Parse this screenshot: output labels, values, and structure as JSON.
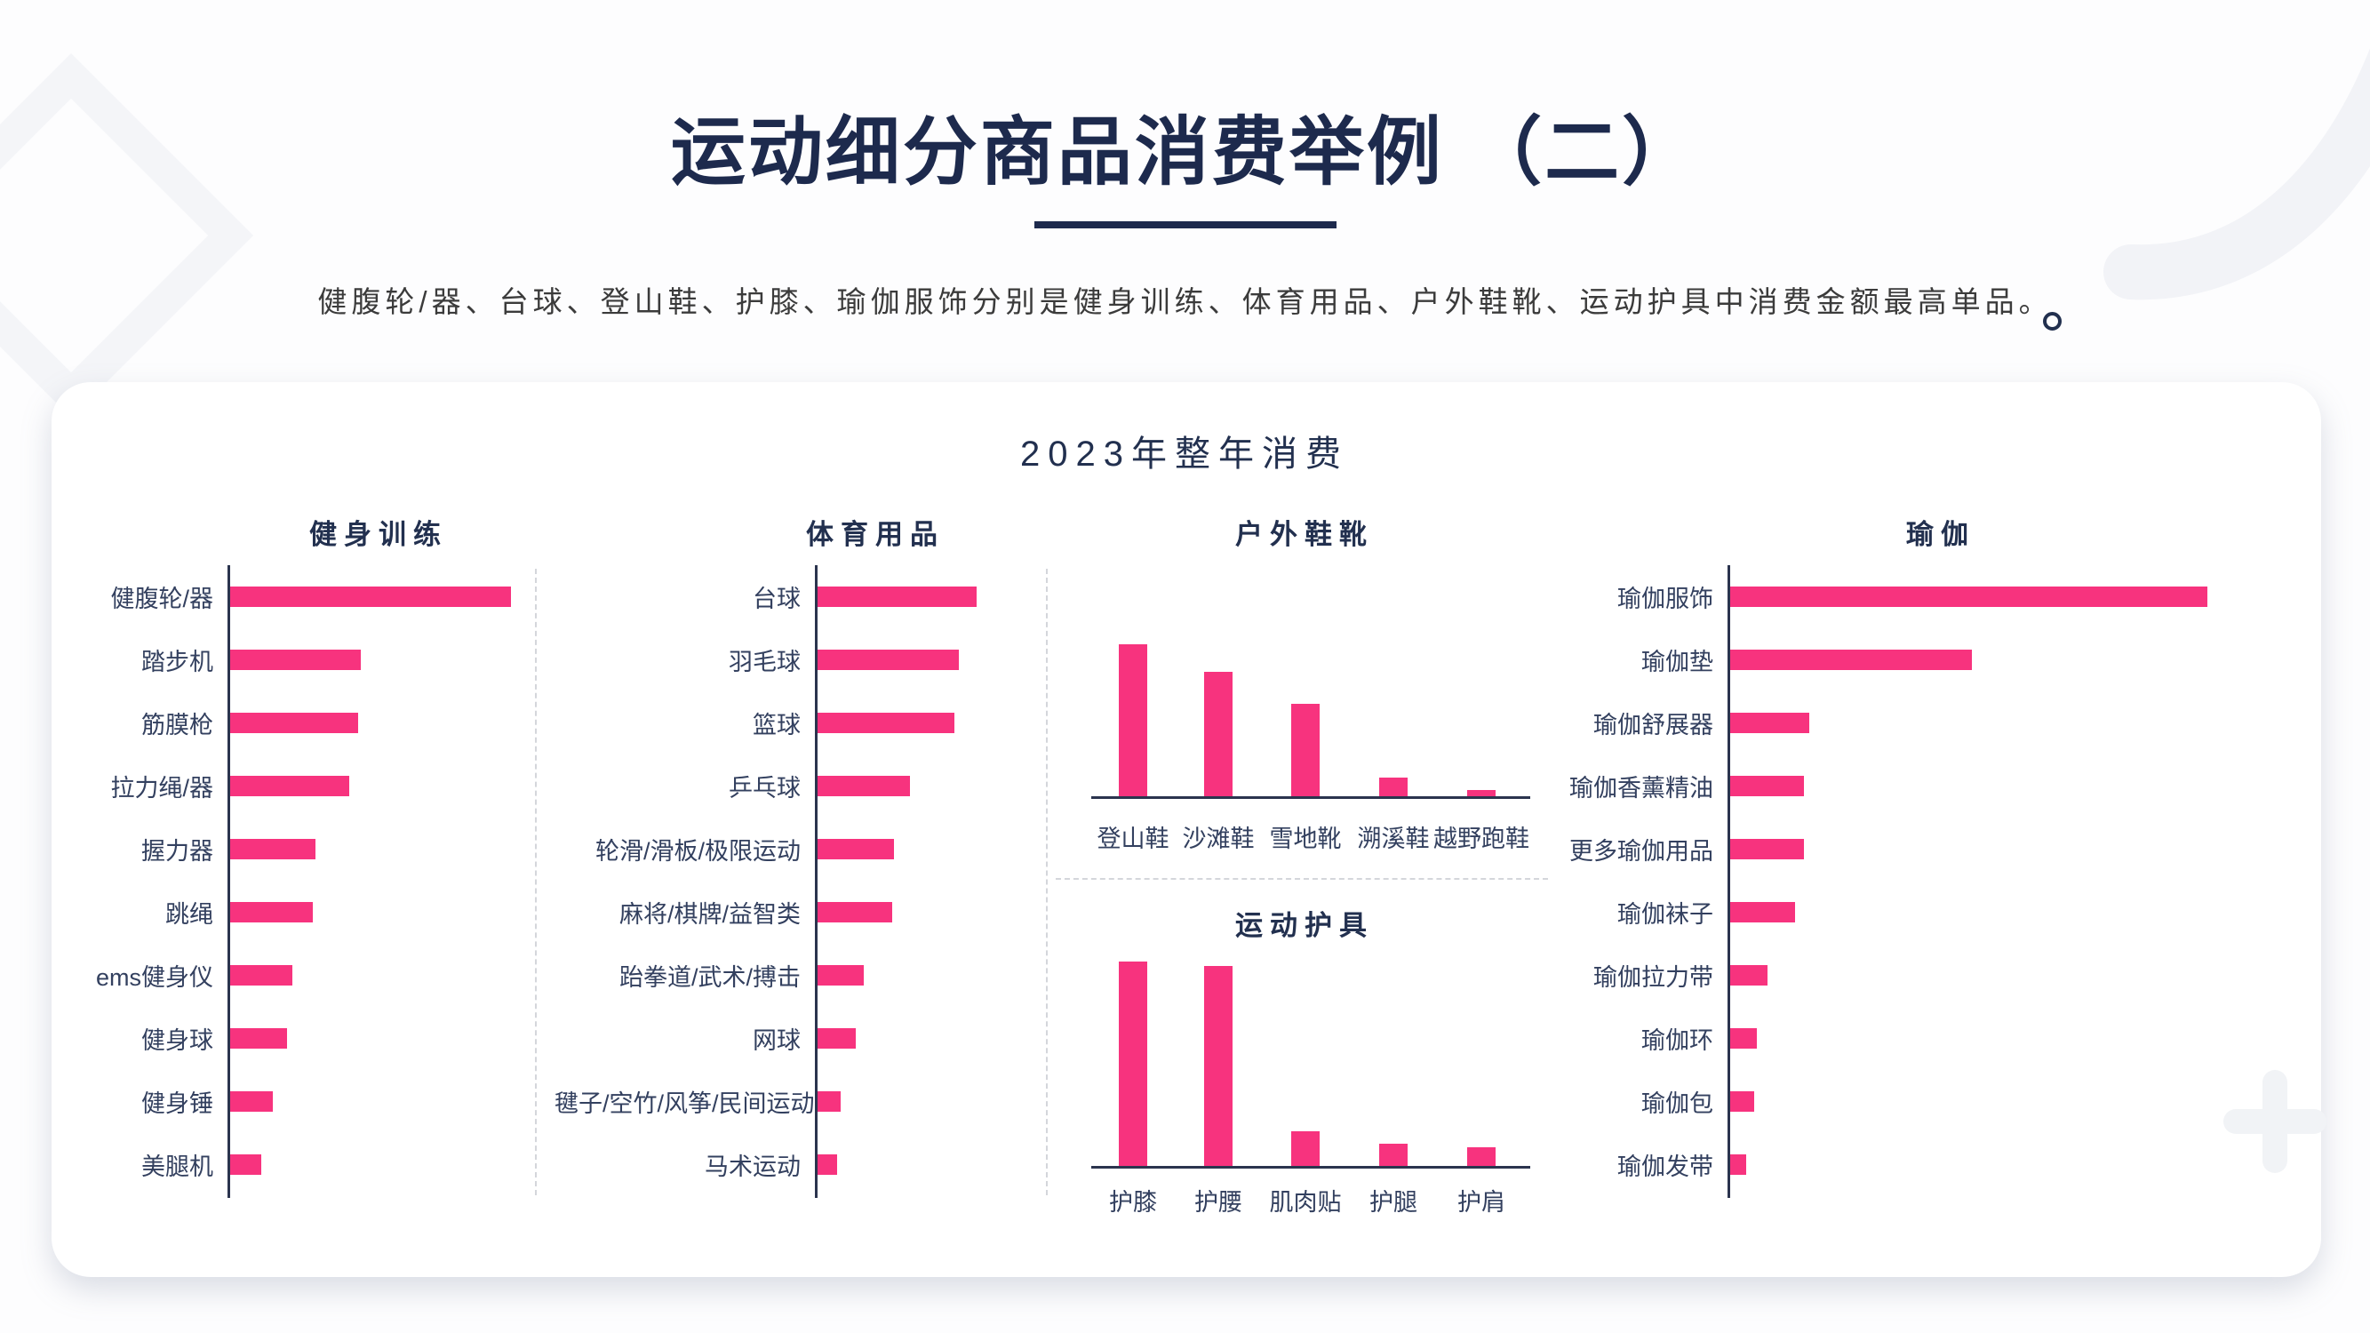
{
  "header": {
    "title": "运动细分商品消费举例 （二）",
    "subtitle": "健腹轮/器、台球、登山鞋、护膝、瑜伽服饰分别是健身训练、体育用品、户外鞋靴、运动护具中消费金额最高单品。"
  },
  "card": {
    "title": "2023年整年消费"
  },
  "colors": {
    "bar_pink": "#f7337e",
    "navy": "#1d2a4d",
    "axis": "#2b344e",
    "dashed_separator": "#d4d6db"
  },
  "chart_data": [
    {
      "type": "bar",
      "orientation": "horizontal",
      "title": "健身训练",
      "note": "relative consumption index, max item = 100 (no numeric axis shown)",
      "categories": [
        "健腹轮/器",
        "踏步机",
        "筋膜枪",
        "拉力绳/器",
        "握力器",
        "跳绳",
        "ems健身仪",
        "健身球",
        "健身锤",
        "美腿机"
      ],
      "values": [
        100,
        47,
        46,
        43,
        31,
        30,
        23,
        21,
        16,
        12
      ],
      "xlabel": "",
      "ylabel": "",
      "grid": false,
      "legend": false
    },
    {
      "type": "bar",
      "orientation": "horizontal",
      "title": "体育用品",
      "note": "relative consumption index, max item = 100 (no numeric axis shown)",
      "categories": [
        "台球",
        "羽毛球",
        "篮球",
        "乒乓球",
        "轮滑/滑板/极限运动",
        "麻将/棋牌/益智类",
        "跆拳道/武术/搏击",
        "网球",
        "毽子/空竹/风筝/民间运动",
        "马术运动"
      ],
      "values": [
        100,
        89,
        86,
        59,
        49,
        48,
        30,
        25,
        16,
        14
      ],
      "xlabel": "",
      "ylabel": "",
      "grid": false,
      "legend": false
    },
    {
      "type": "bar",
      "orientation": "vertical",
      "title": "户外鞋靴",
      "note": "relative consumption index, max item = 100 (no numeric axis shown)",
      "categories": [
        "登山鞋",
        "沙滩鞋",
        "雪地靴",
        "溯溪鞋",
        "越野跑鞋"
      ],
      "values": [
        100,
        82,
        61,
        12,
        4
      ],
      "xlabel": "",
      "ylabel": "",
      "grid": false,
      "legend": false
    },
    {
      "type": "bar",
      "orientation": "vertical",
      "title": "运动护具",
      "note": "relative consumption index, max item = 100 (no numeric axis shown)",
      "categories": [
        "护膝",
        "护腰",
        "肌肉贴",
        "护腿",
        "护肩"
      ],
      "values": [
        100,
        98,
        17,
        11,
        9
      ],
      "xlabel": "",
      "ylabel": "",
      "grid": false,
      "legend": false
    },
    {
      "type": "bar",
      "orientation": "horizontal",
      "title": "瑜伽",
      "note": "relative consumption index, max item = 100 (no numeric axis shown)",
      "categories": [
        "瑜伽服饰",
        "瑜伽垫",
        "瑜伽舒展器",
        "瑜伽香薰精油",
        "更多瑜伽用品",
        "瑜伽袜子",
        "瑜伽拉力带",
        "瑜伽环",
        "瑜伽包",
        "瑜伽发带"
      ],
      "values": [
        100,
        51,
        17,
        16,
        16,
        14,
        8.4,
        6.1,
        5.6,
        3.9
      ],
      "xlabel": "",
      "ylabel": "",
      "grid": false,
      "legend": false
    }
  ]
}
